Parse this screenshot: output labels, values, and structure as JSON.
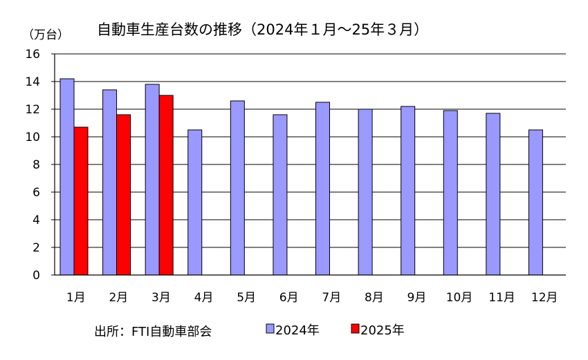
{
  "chart_data": {
    "type": "bar",
    "title": "自動車生産台数の推移（2024年１月～25年３月）",
    "unit_label": "（万台）",
    "source": "出所：FTI自動車部会",
    "categories": [
      "1月",
      "2月",
      "3月",
      "4月",
      "5月",
      "6月",
      "7月",
      "8月",
      "9月",
      "10月",
      "11月",
      "12月"
    ],
    "ylim": [
      0,
      16
    ],
    "y_ticks": [
      0,
      2,
      4,
      6,
      8,
      10,
      12,
      14,
      16
    ],
    "grid": true,
    "legend_position": "bottom",
    "series": [
      {
        "name": "2024年",
        "color": "#9999ff",
        "values": [
          14.2,
          13.4,
          13.8,
          10.5,
          12.6,
          11.6,
          12.5,
          12.0,
          12.2,
          11.9,
          11.7,
          10.5
        ]
      },
      {
        "name": "2025年",
        "color": "#ff0000",
        "values": [
          10.7,
          11.6,
          13.0,
          null,
          null,
          null,
          null,
          null,
          null,
          null,
          null,
          null
        ]
      }
    ]
  }
}
